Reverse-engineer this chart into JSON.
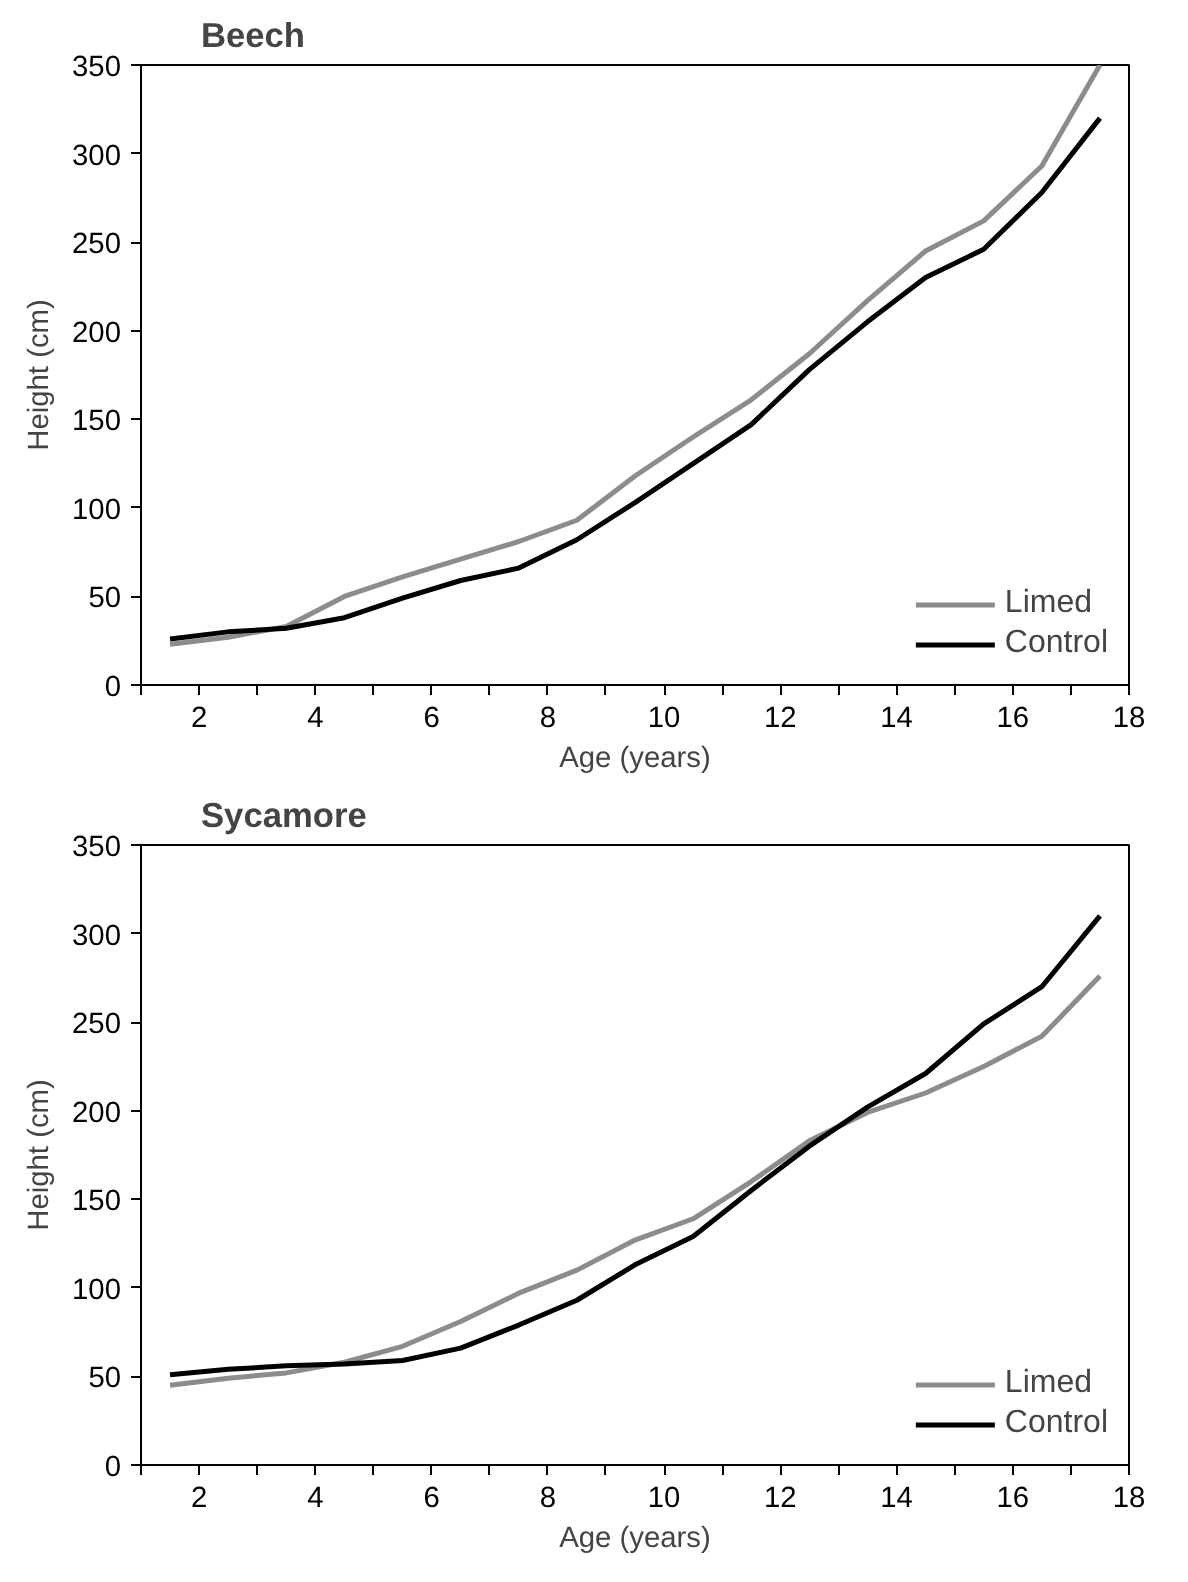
{
  "chart_data": [
    {
      "type": "line",
      "title": "Beech",
      "xlabel": "Age (years)",
      "ylabel": "Height (cm)",
      "x": [
        1.5,
        2.5,
        3.5,
        4.5,
        5.5,
        6.5,
        7.5,
        8.5,
        9.5,
        10.5,
        11.5,
        12.5,
        13.5,
        14.5,
        15.5,
        16.5,
        17.5
      ],
      "series": [
        {
          "name": "Limed",
          "color": "#8c8c8c",
          "values": [
            23,
            27,
            33,
            50,
            61,
            71,
            81,
            93,
            118,
            140,
            161,
            187,
            217,
            245,
            262,
            293,
            350
          ]
        },
        {
          "name": "Control",
          "color": "#000000",
          "values": [
            26,
            30,
            32,
            38,
            49,
            59,
            66,
            82,
            103,
            125,
            147,
            178,
            205,
            230,
            246,
            278,
            320
          ]
        }
      ],
      "xlim": [
        1,
        18
      ],
      "xticks": [
        {
          "value": 1,
          "label": null
        },
        2,
        {
          "value": 3,
          "label": null
        },
        4,
        {
          "value": 5,
          "label": null
        },
        6,
        {
          "value": 7,
          "label": null
        },
        8,
        {
          "value": 9,
          "label": null
        },
        10,
        {
          "value": 11,
          "label": null
        },
        12,
        {
          "value": 13,
          "label": null
        },
        14,
        {
          "value": 15,
          "label": null
        },
        16,
        {
          "value": 17,
          "label": null
        },
        18
      ],
      "ylim": [
        0,
        350
      ],
      "yticks": [
        0,
        50,
        100,
        150,
        200,
        250,
        300,
        350
      ],
      "grid": false,
      "legend": "bottom right",
      "marker": "none",
      "line_style": "solid"
    },
    {
      "type": "line",
      "title": "Sycamore",
      "xlabel": "Age (years)",
      "ylabel": "Height (cm)",
      "x": [
        1.5,
        2.5,
        3.5,
        4.5,
        5.5,
        6.5,
        7.5,
        8.5,
        9.5,
        10.5,
        11.5,
        12.5,
        13.5,
        14.5,
        15.5,
        16.5,
        17.5
      ],
      "series": [
        {
          "name": "Limed",
          "color": "#8c8c8c",
          "values": [
            45,
            49,
            52,
            58,
            67,
            81,
            97,
            110,
            127,
            139,
            160,
            183,
            199,
            210,
            225,
            242,
            276
          ]
        },
        {
          "name": "Control",
          "color": "#000000",
          "values": [
            51,
            54,
            56,
            57,
            59,
            66,
            79,
            93,
            113,
            129,
            155,
            180,
            202,
            221,
            249,
            270,
            310
          ]
        }
      ],
      "xlim": [
        1,
        18
      ],
      "xticks": [
        {
          "value": 1,
          "label": null
        },
        2,
        {
          "value": 3,
          "label": null
        },
        4,
        {
          "value": 5,
          "label": null
        },
        6,
        {
          "value": 7,
          "label": null
        },
        8,
        {
          "value": 9,
          "label": null
        },
        10,
        {
          "value": 11,
          "label": null
        },
        12,
        {
          "value": 13,
          "label": null
        },
        14,
        {
          "value": 15,
          "label": null
        },
        16,
        {
          "value": 17,
          "label": null
        },
        18
      ],
      "ylim": [
        0,
        350
      ],
      "yticks": [
        0,
        50,
        100,
        150,
        200,
        250,
        300,
        350
      ],
      "grid": false,
      "legend": "bottom right",
      "marker": "none",
      "line_style": "solid"
    }
  ]
}
